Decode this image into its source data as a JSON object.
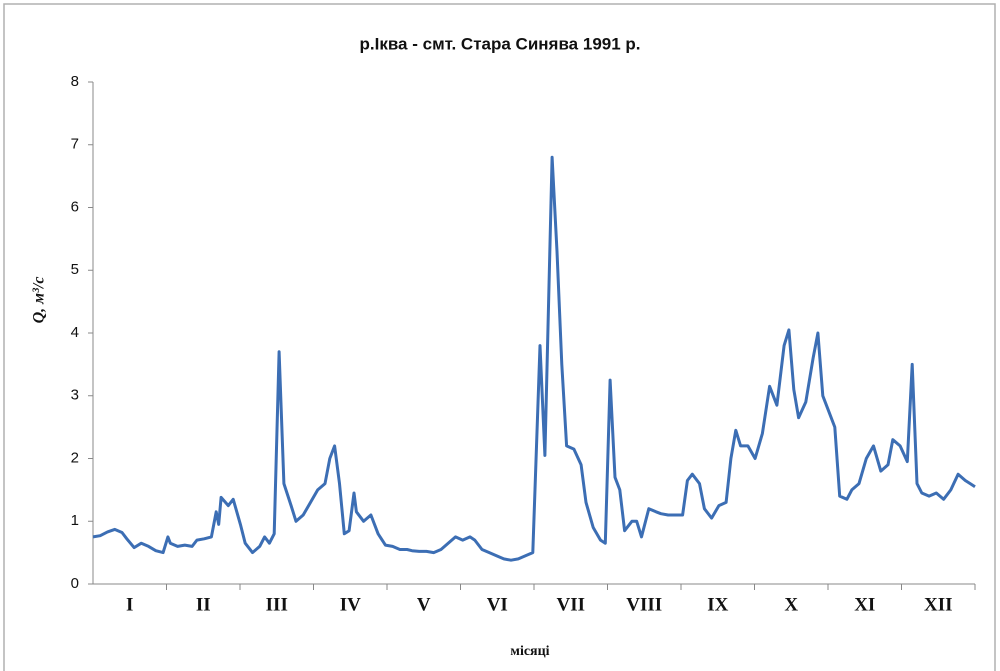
{
  "chart_data": {
    "type": "line",
    "title": "р.Іква - смт. Стара Синява 1991 р.",
    "y_label": "Q, м³/с",
    "x_label": "місяці",
    "categories": [
      "I",
      "II",
      "III",
      "IV",
      "V",
      "VI",
      "VII",
      "VIII",
      "IX",
      "X",
      "XI",
      "XII"
    ],
    "xlim": [
      0,
      365
    ],
    "ylim": [
      0,
      8
    ],
    "yticks": [
      0,
      1,
      2,
      3,
      4,
      5,
      6,
      7,
      8
    ],
    "series": [
      {
        "name": "Q",
        "color": "#3c6eb4",
        "x": [
          0,
          3,
          6,
          9,
          12,
          14,
          17,
          20,
          23,
          26,
          29,
          31,
          32,
          35,
          38,
          41,
          43,
          46,
          49,
          51,
          52,
          53,
          56,
          58,
          61,
          63,
          66,
          69,
          71,
          73,
          75,
          77,
          79,
          82,
          84,
          87,
          90,
          93,
          96,
          98,
          100,
          102,
          104,
          106,
          108,
          109,
          112,
          115,
          118,
          121,
          124,
          127,
          130,
          132,
          135,
          138,
          141,
          144,
          150,
          153,
          156,
          158,
          161,
          164,
          167,
          170,
          173,
          176,
          179,
          182,
          185,
          187,
          190,
          192,
          194,
          196,
          199,
          202,
          204,
          207,
          210,
          212,
          214,
          216,
          218,
          220,
          223,
          225,
          227,
          230,
          233,
          235,
          238,
          241,
          244,
          246,
          248,
          251,
          253,
          256,
          259,
          262,
          264,
          266,
          268,
          271,
          274,
          277,
          280,
          283,
          286,
          288,
          290,
          292,
          295,
          298,
          300,
          302,
          304,
          307,
          309,
          312,
          314,
          317,
          320,
          323,
          326,
          329,
          331,
          334,
          337,
          339,
          341,
          343,
          346,
          349,
          352,
          355,
          358,
          361,
          363,
          365
        ],
        "values": [
          0.75,
          0.77,
          0.83,
          0.87,
          0.82,
          0.72,
          0.58,
          0.65,
          0.6,
          0.53,
          0.5,
          0.75,
          0.65,
          0.6,
          0.62,
          0.6,
          0.7,
          0.72,
          0.75,
          1.15,
          0.95,
          1.38,
          1.25,
          1.35,
          0.95,
          0.65,
          0.5,
          0.6,
          0.75,
          0.65,
          0.8,
          3.7,
          1.6,
          1.25,
          1.0,
          1.1,
          1.3,
          1.5,
          1.6,
          2.0,
          2.2,
          1.6,
          0.8,
          0.85,
          1.45,
          1.15,
          1.0,
          1.1,
          0.8,
          0.62,
          0.6,
          0.55,
          0.55,
          0.53,
          0.52,
          0.52,
          0.5,
          0.55,
          0.75,
          0.7,
          0.75,
          0.7,
          0.55,
          0.5,
          0.45,
          0.4,
          0.38,
          0.4,
          0.45,
          0.5,
          3.8,
          2.05,
          6.8,
          5.3,
          3.5,
          2.2,
          2.15,
          1.9,
          1.3,
          0.9,
          0.7,
          0.65,
          3.25,
          1.7,
          1.5,
          0.85,
          1.0,
          1.0,
          0.75,
          1.2,
          1.15,
          1.12,
          1.1,
          1.1,
          1.1,
          1.65,
          1.75,
          1.6,
          1.2,
          1.05,
          1.25,
          1.3,
          2.0,
          2.45,
          2.2,
          2.2,
          2.0,
          2.4,
          3.15,
          2.85,
          3.8,
          4.05,
          3.1,
          2.65,
          2.9,
          3.6,
          4.0,
          3.0,
          2.8,
          2.5,
          1.4,
          1.35,
          1.5,
          1.6,
          2.0,
          2.2,
          1.8,
          1.9,
          2.3,
          2.2,
          1.95,
          3.5,
          1.6,
          1.45,
          1.4,
          1.45,
          1.35,
          1.5,
          1.75,
          1.65,
          1.6,
          1.55
        ]
      }
    ]
  }
}
